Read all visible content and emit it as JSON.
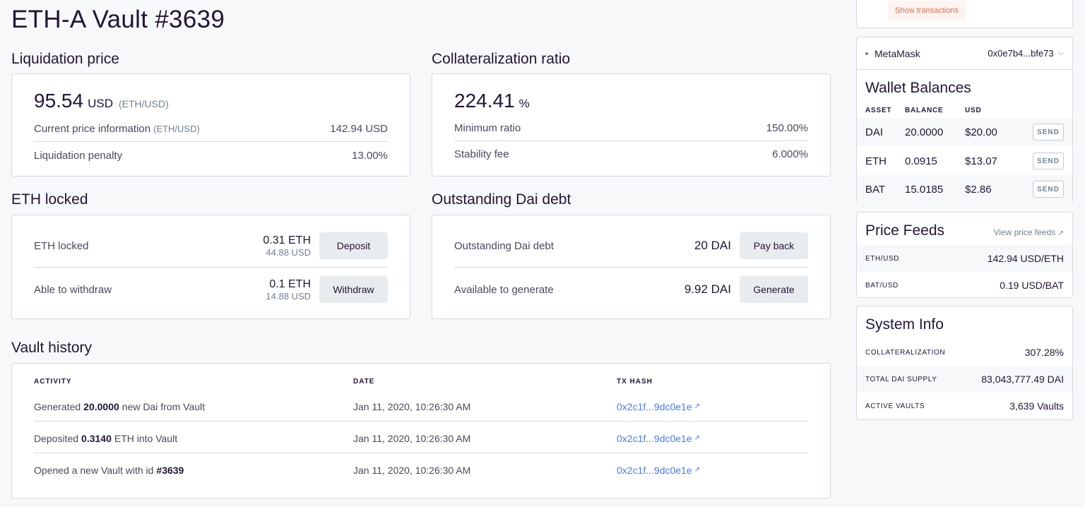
{
  "page": {
    "title": "ETH-A Vault #3639"
  },
  "liquidation": {
    "title": "Liquidation price",
    "value": "95.54",
    "unit": "USD",
    "pair": "(ETH/USD)",
    "current_label": "Current price information",
    "current_pair": "(ETH/USD)",
    "current_value": "142.94 USD",
    "penalty_label": "Liquidation penalty",
    "penalty_value": "13.00%"
  },
  "collateralization": {
    "title": "Collateralization ratio",
    "value": "224.41",
    "unit": "%",
    "min_label": "Minimum ratio",
    "min_value": "150.00%",
    "fee_label": "Stability fee",
    "fee_value": "6.000%"
  },
  "eth_locked": {
    "title": "ETH locked",
    "locked_label": "ETH locked",
    "locked_amount": "0.31 ETH",
    "locked_usd": "44.88 USD",
    "deposit_label": "Deposit",
    "withdraw_label": "Able to withdraw",
    "withdraw_amount": "0.1 ETH",
    "withdraw_usd": "14.88 USD",
    "withdraw_button": "Withdraw"
  },
  "debt": {
    "title": "Outstanding Dai debt",
    "debt_label": "Outstanding Dai debt",
    "debt_value": "20 DAI",
    "payback_label": "Pay back",
    "available_label": "Available to generate",
    "available_value": "9.92 DAI",
    "generate_label": "Generate"
  },
  "history": {
    "title": "Vault history",
    "headers": {
      "activity": "ACTIVITY",
      "date": "DATE",
      "tx": "TX HASH"
    },
    "rows": [
      {
        "pre": "Generated",
        "bold": "20.0000",
        "post": "new Dai from Vault",
        "date": "Jan 11, 2020, 10:26:30 AM",
        "tx": "0x2c1f...9dc0e1e"
      },
      {
        "pre": "Deposited",
        "bold": "0.3140",
        "post": "ETH into Vault",
        "date": "Jan 11, 2020, 10:26:30 AM",
        "tx": "0x2c1f...9dc0e1e"
      },
      {
        "pre": "Opened a new Vault with id",
        "bold": "#3639",
        "post": "",
        "date": "Jan 11, 2020, 10:26:30 AM",
        "tx": "0x2c1f...9dc0e1e"
      }
    ]
  },
  "sidebar": {
    "show_transactions": "Show transactions",
    "wallet": {
      "name": "MetaMask",
      "address": "0x0e7b4...bfe73"
    },
    "balances": {
      "title": "Wallet Balances",
      "headers": {
        "asset": "ASSET",
        "balance": "BALANCE",
        "usd": "USD"
      },
      "send_label": "SEND",
      "rows": [
        {
          "asset": "DAI",
          "balance": "20.0000",
          "usd": "$20.00"
        },
        {
          "asset": "ETH",
          "balance": "0.0915",
          "usd": "$13.07"
        },
        {
          "asset": "BAT",
          "balance": "15.0185",
          "usd": "$2.86"
        }
      ]
    },
    "price_feeds": {
      "title": "Price Feeds",
      "link": "View price feeds",
      "rows": [
        {
          "pair": "ETH/USD",
          "value": "142.94 USD/ETH"
        },
        {
          "pair": "BAT/USD",
          "value": "0.19 USD/BAT"
        }
      ]
    },
    "system_info": {
      "title": "System Info",
      "rows": [
        {
          "key": "COLLATERALIZATION",
          "value": "307.28%"
        },
        {
          "key": "TOTAL DAI SUPPLY",
          "value": "83,043,777.49 DAI"
        },
        {
          "key": "ACTIVE VAULTS",
          "value": "3,639 Vaults"
        }
      ]
    }
  }
}
